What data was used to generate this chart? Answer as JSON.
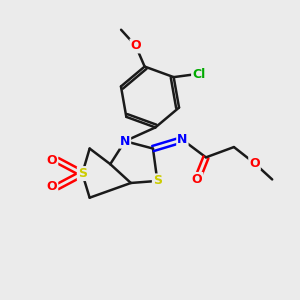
{
  "background_color": "#ebebeb",
  "bond_color": "#1a1a1a",
  "bond_width": 1.8,
  "atom_colors": {
    "C": "#1a1a1a",
    "N": "#0000ff",
    "O": "#ff0000",
    "S": "#cccc00",
    "Cl": "#00aa00"
  },
  "font_size": 9
}
